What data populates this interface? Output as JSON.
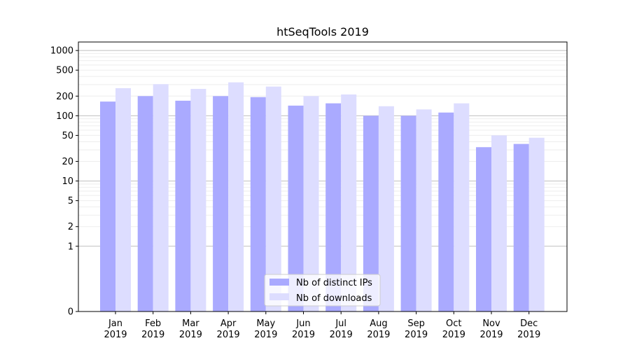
{
  "chart_data": {
    "type": "bar",
    "title": "htSeqTools 2019",
    "xlabel": "",
    "ylabel": "",
    "y_scale": "symlog",
    "ylim": [
      0,
      1350
    ],
    "y_ticks": [
      0,
      1,
      2,
      5,
      10,
      20,
      50,
      100,
      200,
      500,
      1000
    ],
    "y_tick_labels": [
      "0",
      "1",
      "2",
      "5",
      "10",
      "20",
      "50",
      "100",
      "200",
      "500",
      "1000"
    ],
    "grid": "y-major-and-minor",
    "legend_position": "lower-center",
    "categories": [
      {
        "month": "Jan",
        "year": "2019"
      },
      {
        "month": "Feb",
        "year": "2019"
      },
      {
        "month": "Mar",
        "year": "2019"
      },
      {
        "month": "Apr",
        "year": "2019"
      },
      {
        "month": "May",
        "year": "2019"
      },
      {
        "month": "Jun",
        "year": "2019"
      },
      {
        "month": "Jul",
        "year": "2019"
      },
      {
        "month": "Aug",
        "year": "2019"
      },
      {
        "month": "Sep",
        "year": "2019"
      },
      {
        "month": "Oct",
        "year": "2019"
      },
      {
        "month": "Nov",
        "year": "2019"
      },
      {
        "month": "Dec",
        "year": "2019"
      }
    ],
    "series": [
      {
        "name": "Nb of distinct IPs",
        "color": "#aaaaff",
        "values": [
          165,
          200,
          170,
          200,
          193,
          143,
          155,
          100,
          100,
          112,
          33,
          37
        ]
      },
      {
        "name": "Nb of downloads",
        "color": "#ddddff",
        "values": [
          265,
          305,
          258,
          325,
          280,
          200,
          212,
          140,
          125,
          155,
          50,
          46
        ]
      }
    ]
  }
}
